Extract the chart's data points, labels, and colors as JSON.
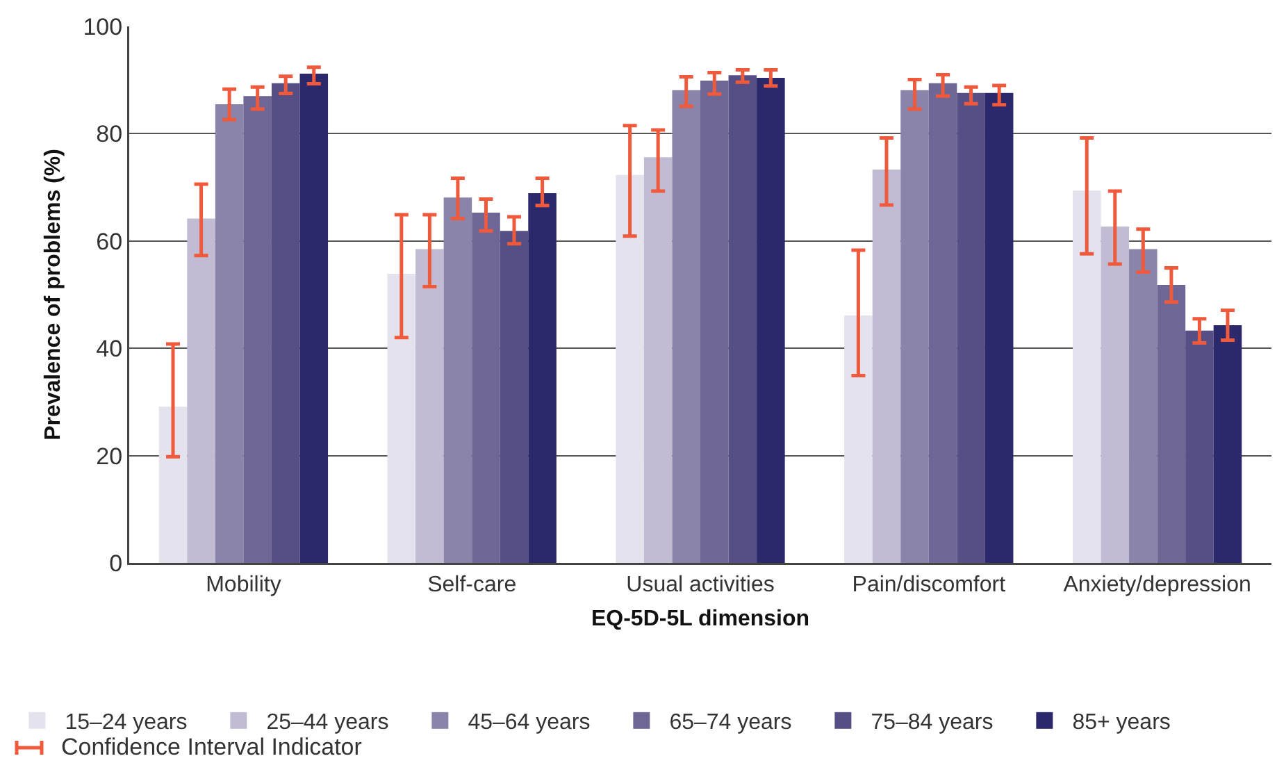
{
  "chart_data": {
    "type": "bar",
    "xlabel": "EQ-5D-5L dimension",
    "ylabel": "Prevalence of problems (%)",
    "categories": [
      "Mobility",
      "Self-care",
      "Usual activities",
      "Pain/discomfort",
      "Anxiety/depression"
    ],
    "ylim": [
      0,
      100
    ],
    "yticks": [
      0,
      20,
      40,
      60,
      80,
      100
    ],
    "grid": "y",
    "legend": "bottom",
    "annotations": [
      "Confidence Interval Indicator"
    ],
    "series": [
      {
        "name": "15–24 years",
        "color": "#e4e2ec",
        "values": [
          29.1,
          53.9,
          72.3,
          46.1,
          69.4
        ],
        "errors": [
          [
            19.8,
            40.8
          ],
          [
            42.0,
            64.9
          ],
          [
            60.9,
            81.5
          ],
          [
            34.9,
            58.3
          ],
          [
            57.6,
            79.2
          ]
        ]
      },
      {
        "name": "25–44 years",
        "color": "#c1bcd3",
        "values": [
          64.2,
          58.5,
          75.6,
          73.3,
          62.7
        ],
        "errors": [
          [
            57.3,
            70.6
          ],
          [
            51.5,
            64.9
          ],
          [
            69.3,
            80.7
          ],
          [
            66.7,
            79.2
          ],
          [
            55.7,
            69.3
          ]
        ]
      },
      {
        "name": "45–64 years",
        "color": "#8a83aa",
        "values": [
          85.5,
          68.1,
          88.1,
          88.1,
          58.5
        ],
        "errors": [
          [
            82.6,
            88.3
          ],
          [
            64.2,
            71.7
          ],
          [
            85.1,
            90.6
          ],
          [
            84.6,
            90.1
          ],
          [
            54.2,
            62.2
          ]
        ]
      },
      {
        "name": "65–74 years",
        "color": "#6e6796",
        "values": [
          87.0,
          65.3,
          89.9,
          89.4,
          51.8
        ],
        "errors": [
          [
            84.6,
            88.7
          ],
          [
            61.9,
            67.8
          ],
          [
            87.4,
            91.4
          ],
          [
            87.0,
            91.0
          ],
          [
            48.6,
            55.0
          ]
        ]
      },
      {
        "name": "75–84 years",
        "color": "#564f86",
        "values": [
          89.4,
          61.9,
          90.9,
          87.6,
          43.3
        ],
        "errors": [
          [
            87.5,
            90.7
          ],
          [
            59.5,
            64.5
          ],
          [
            89.6,
            91.9
          ],
          [
            85.6,
            88.7
          ],
          [
            41.0,
            45.5
          ]
        ]
      },
      {
        "name": "85+ years",
        "color": "#2c286c",
        "values": [
          91.2,
          68.9,
          90.4,
          87.6,
          44.3
        ],
        "errors": [
          [
            89.3,
            92.4
          ],
          [
            66.6,
            71.7
          ],
          [
            88.9,
            91.9
          ],
          [
            85.4,
            89.0
          ],
          [
            41.5,
            47.1
          ]
        ]
      }
    ]
  }
}
